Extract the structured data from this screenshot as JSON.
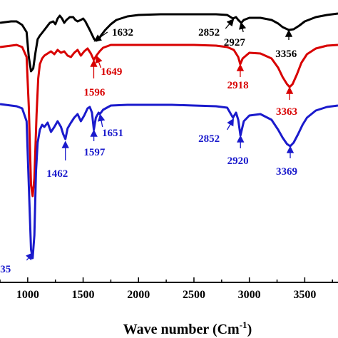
{
  "chart_data": {
    "type": "line",
    "xlabel": "Wave number (Cm",
    "xlabel_sup": "-1",
    "xlabel_close": ")",
    "xlim": [
      750,
      3800
    ],
    "xticks": [
      1000,
      1500,
      2000,
      2500,
      3000,
      3500
    ],
    "xtick_labels": [
      "1000",
      "1500",
      "2000",
      "2500",
      "3000",
      "3500"
    ],
    "grid": false,
    "legend": "none",
    "series": [
      {
        "color": "#000000",
        "offset": 0,
        "points": [
          [
            750,
            32
          ],
          [
            800,
            31
          ],
          [
            850,
            30
          ],
          [
            900,
            30
          ],
          [
            950,
            35
          ],
          [
            990,
            45
          ],
          [
            1010,
            80
          ],
          [
            1030,
            100
          ],
          [
            1050,
            96
          ],
          [
            1070,
            74
          ],
          [
            1090,
            55
          ],
          [
            1110,
            50
          ],
          [
            1130,
            46
          ],
          [
            1150,
            42
          ],
          [
            1180,
            36
          ],
          [
            1200,
            32
          ],
          [
            1230,
            30
          ],
          [
            1250,
            34
          ],
          [
            1270,
            26
          ],
          [
            1290,
            22
          ],
          [
            1310,
            26
          ],
          [
            1330,
            32
          ],
          [
            1350,
            28
          ],
          [
            1380,
            24
          ],
          [
            1410,
            24
          ],
          [
            1430,
            28
          ],
          [
            1450,
            30
          ],
          [
            1480,
            28
          ],
          [
            1500,
            26
          ],
          [
            1520,
            30
          ],
          [
            1560,
            42
          ],
          [
            1600,
            55
          ],
          [
            1620,
            57
          ],
          [
            1640,
            56
          ],
          [
            1660,
            50
          ],
          [
            1700,
            42
          ],
          [
            1750,
            34
          ],
          [
            1800,
            28
          ],
          [
            1900,
            23
          ],
          [
            2000,
            21
          ],
          [
            2200,
            20
          ],
          [
            2500,
            20
          ],
          [
            2700,
            20
          ],
          [
            2800,
            21
          ],
          [
            2852,
            26
          ],
          [
            2880,
            24
          ],
          [
            2900,
            28
          ],
          [
            2927,
            32
          ],
          [
            2950,
            28
          ],
          [
            3000,
            25
          ],
          [
            3100,
            25
          ],
          [
            3200,
            28
          ],
          [
            3260,
            33
          ],
          [
            3300,
            38
          ],
          [
            3356,
            42
          ],
          [
            3400,
            41
          ],
          [
            3450,
            36
          ],
          [
            3500,
            30
          ],
          [
            3600,
            24
          ],
          [
            3700,
            21
          ],
          [
            3800,
            19
          ]
        ]
      },
      {
        "color": "#d80000",
        "offset": 0,
        "points": [
          [
            750,
            66
          ],
          [
            800,
            65
          ],
          [
            850,
            64
          ],
          [
            900,
            63
          ],
          [
            950,
            66
          ],
          [
            990,
            80
          ],
          [
            1010,
            150
          ],
          [
            1030,
            260
          ],
          [
            1045,
            275
          ],
          [
            1060,
            250
          ],
          [
            1080,
            160
          ],
          [
            1095,
            110
          ],
          [
            1110,
            90
          ],
          [
            1130,
            82
          ],
          [
            1150,
            78
          ],
          [
            1180,
            75
          ],
          [
            1210,
            72
          ],
          [
            1240,
            76
          ],
          [
            1270,
            70
          ],
          [
            1300,
            74
          ],
          [
            1330,
            72
          ],
          [
            1360,
            78
          ],
          [
            1390,
            80
          ],
          [
            1420,
            74
          ],
          [
            1450,
            70
          ],
          [
            1480,
            78
          ],
          [
            1510,
            72
          ],
          [
            1540,
            68
          ],
          [
            1570,
            75
          ],
          [
            1596,
            84
          ],
          [
            1620,
            78
          ],
          [
            1649,
            72
          ],
          [
            1680,
            67
          ],
          [
            1750,
            63
          ],
          [
            1900,
            63
          ],
          [
            2100,
            63
          ],
          [
            2300,
            63
          ],
          [
            2500,
            63
          ],
          [
            2700,
            64
          ],
          [
            2800,
            66
          ],
          [
            2860,
            70
          ],
          [
            2900,
            80
          ],
          [
            2918,
            90
          ],
          [
            2940,
            82
          ],
          [
            3000,
            74
          ],
          [
            3100,
            75
          ],
          [
            3200,
            82
          ],
          [
            3260,
            95
          ],
          [
            3300,
            108
          ],
          [
            3340,
            118
          ],
          [
            3363,
            122
          ],
          [
            3390,
            118
          ],
          [
            3430,
            104
          ],
          [
            3470,
            88
          ],
          [
            3520,
            76
          ],
          [
            3600,
            68
          ],
          [
            3700,
            64
          ],
          [
            3800,
            63
          ]
        ]
      },
      {
        "color": "#1a1acc",
        "offset": 0,
        "points": [
          [
            750,
            146
          ],
          [
            800,
            147
          ],
          [
            850,
            148
          ],
          [
            900,
            149
          ],
          [
            950,
            152
          ],
          [
            990,
            170
          ],
          [
            1010,
            260
          ],
          [
            1030,
            350
          ],
          [
            1045,
            362
          ],
          [
            1060,
            330
          ],
          [
            1075,
            240
          ],
          [
            1090,
            200
          ],
          [
            1110,
            182
          ],
          [
            1130,
            175
          ],
          [
            1150,
            178
          ],
          [
            1180,
            172
          ],
          [
            1210,
            185
          ],
          [
            1240,
            178
          ],
          [
            1270,
            170
          ],
          [
            1300,
            178
          ],
          [
            1320,
            188
          ],
          [
            1340,
            195
          ],
          [
            1360,
            180
          ],
          [
            1390,
            172
          ],
          [
            1420,
            165
          ],
          [
            1450,
            160
          ],
          [
            1480,
            170
          ],
          [
            1510,
            162
          ],
          [
            1540,
            152
          ],
          [
            1560,
            150
          ],
          [
            1580,
            158
          ],
          [
            1597,
            182
          ],
          [
            1615,
            165
          ],
          [
            1640,
            158
          ],
          [
            1651,
            160
          ],
          [
            1680,
            154
          ],
          [
            1750,
            148
          ],
          [
            1900,
            147
          ],
          [
            2100,
            147
          ],
          [
            2300,
            147
          ],
          [
            2500,
            148
          ],
          [
            2700,
            149
          ],
          [
            2800,
            151
          ],
          [
            2852,
            165
          ],
          [
            2880,
            158
          ],
          [
            2900,
            168
          ],
          [
            2920,
            190
          ],
          [
            2950,
            170
          ],
          [
            3000,
            162
          ],
          [
            3100,
            160
          ],
          [
            3200,
            168
          ],
          [
            3260,
            182
          ],
          [
            3300,
            193
          ],
          [
            3340,
            202
          ],
          [
            3369,
            205
          ],
          [
            3400,
            200
          ],
          [
            3440,
            188
          ],
          [
            3480,
            175
          ],
          [
            3520,
            165
          ],
          [
            3600,
            155
          ],
          [
            3700,
            150
          ],
          [
            3800,
            148
          ]
        ]
      }
    ],
    "annotations": [
      {
        "text": "1632",
        "color": "#000000",
        "arrow_from": [
          1720,
          45
        ],
        "arrow_to": [
          1610,
          57
        ],
        "label_at": [
          1760,
          50
        ],
        "anchor": "start"
      },
      {
        "text": "2852",
        "color": "#000000",
        "arrow_from": [
          2785,
          40
        ],
        "arrow_to": [
          2852,
          28
        ],
        "label_at": [
          2540,
          50
        ],
        "anchor": "start"
      },
      {
        "text": "2927",
        "color": "#000000",
        "arrow_from": [
          2945,
          45
        ],
        "arrow_to": [
          2927,
          33
        ],
        "label_at": [
          2770,
          64
        ],
        "anchor": "start"
      },
      {
        "text": "3356",
        "color": "#000000",
        "arrow_from": [
          3356,
          56
        ],
        "arrow_to": [
          3356,
          44
        ],
        "label_at": [
          3235,
          80
        ],
        "anchor": "start"
      },
      {
        "text": "1649",
        "color": "#d80000",
        "arrow_from": [
          1660,
          95
        ],
        "arrow_to": [
          1625,
          80
        ],
        "label_at": [
          1660,
          105
        ],
        "anchor": "start"
      },
      {
        "text": "1596",
        "color": "#d80000",
        "arrow_from": [
          1596,
          110
        ],
        "arrow_to": [
          1596,
          86
        ],
        "label_at": [
          1505,
          134
        ],
        "anchor": "start"
      },
      {
        "text": "2918",
        "color": "#d80000",
        "arrow_from": [
          2918,
          108
        ],
        "arrow_to": [
          2918,
          92
        ],
        "label_at": [
          2800,
          124
        ],
        "anchor": "start"
      },
      {
        "text": "3363",
        "color": "#d80000",
        "arrow_from": [
          3363,
          140
        ],
        "arrow_to": [
          3363,
          124
        ],
        "label_at": [
          3240,
          161
        ],
        "anchor": "start"
      },
      {
        "text": "1651",
        "color": "#1a1acc",
        "arrow_from": [
          1675,
          178
        ],
        "arrow_to": [
          1655,
          162
        ],
        "label_at": [
          1670,
          191
        ],
        "anchor": "start"
      },
      {
        "text": "1597",
        "color": "#1a1acc",
        "arrow_from": [
          1597,
          198
        ],
        "arrow_to": [
          1597,
          184
        ],
        "label_at": [
          1505,
          218
        ],
        "anchor": "start"
      },
      {
        "text": "1462",
        "color": "#1a1acc",
        "arrow_from": [
          1340,
          225
        ],
        "arrow_to": [
          1340,
          200
        ],
        "label_at": [
          1170,
          248
        ],
        "anchor": "start"
      },
      {
        "text": "2852",
        "color": "#1a1acc",
        "arrow_from": [
          2800,
          182
        ],
        "arrow_to": [
          2852,
          168
        ],
        "label_at": [
          2540,
          199
        ],
        "anchor": "start"
      },
      {
        "text": "2920",
        "color": "#1a1acc",
        "arrow_from": [
          2920,
          208
        ],
        "arrow_to": [
          2920,
          192
        ],
        "label_at": [
          2800,
          230
        ],
        "anchor": "start"
      },
      {
        "text": "3369",
        "color": "#1a1acc",
        "arrow_from": [
          3369,
          222
        ],
        "arrow_to": [
          3369,
          207
        ],
        "label_at": [
          3240,
          245
        ],
        "anchor": "start"
      },
      {
        "text": "35",
        "color": "#1a1acc",
        "arrow_from": [
          990,
          365
        ],
        "arrow_to": [
          1040,
          356
        ],
        "label_at": [
          752,
          382
        ],
        "anchor": "start"
      }
    ]
  }
}
